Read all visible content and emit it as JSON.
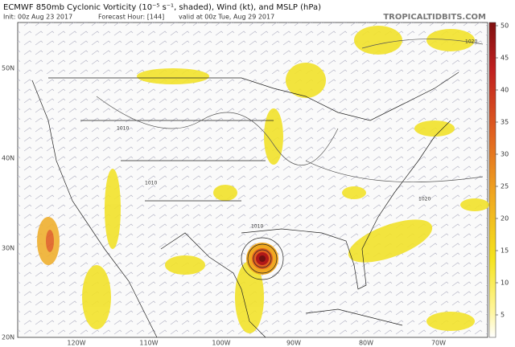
{
  "header": {
    "title": "ECMWF 850mb Cyclonic Vorticity (10⁻⁵ s⁻¹, shaded), Wind (kt), and MSLP (hPa)",
    "init": "Init: 00z Aug 23 2017",
    "forecast": "Forecast Hour: [144]",
    "valid": "valid at 00z Tue, Aug 29 2017",
    "site": "TROPICALTIDBITS.COM"
  },
  "map": {
    "latitudes": [
      "50N",
      "40N",
      "30N",
      "20N"
    ],
    "longitudes": [
      "120W",
      "110W",
      "100W",
      "90W",
      "80W",
      "70W"
    ],
    "isobars": [
      "1020",
      "1010",
      "1010",
      "1020",
      "1010"
    ]
  },
  "colorbar": {
    "lim": [
      1.5,
      50.5
    ],
    "ticks": [
      5,
      10,
      15,
      20,
      25,
      30,
      35,
      40,
      45,
      50
    ]
  }
}
